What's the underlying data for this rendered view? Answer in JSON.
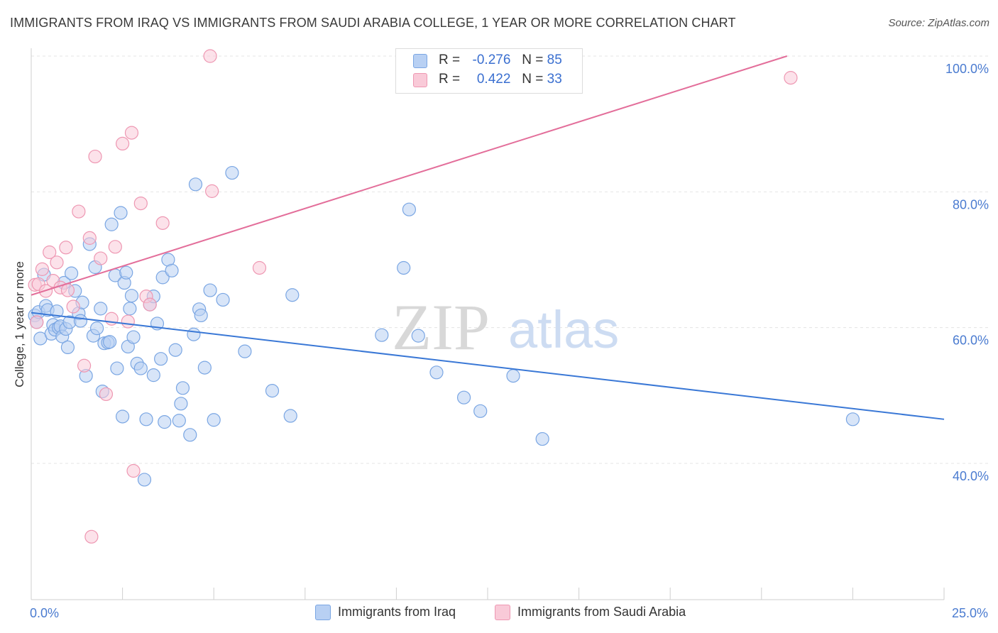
{
  "title": "IMMIGRANTS FROM IRAQ VS IMMIGRANTS FROM SAUDI ARABIA COLLEGE, 1 YEAR OR MORE CORRELATION CHART",
  "source": "Source: ZipAtlas.com",
  "watermark": {
    "zip": "ZIP",
    "atlas": "atlas"
  },
  "legend": {
    "r_label": "R =",
    "n_label": "N =",
    "rows": [
      {
        "r": "-0.276",
        "n": "85",
        "fill": "#b8d0f3",
        "stroke": "#7aa6e3"
      },
      {
        "r": "0.422",
        "n": "33",
        "fill": "#f9cad8",
        "stroke": "#ee97b2"
      }
    ]
  },
  "bottom_legend": [
    {
      "label": "Immigrants from Iraq",
      "fill": "#b8d0f3",
      "stroke": "#7aa6e3"
    },
    {
      "label": "Immigrants from Saudi Arabia",
      "fill": "#f9cad8",
      "stroke": "#ee97b2"
    }
  ],
  "chart_data": {
    "type": "scatter",
    "title": "IMMIGRANTS FROM IRAQ VS IMMIGRANTS FROM SAUDI ARABIA COLLEGE, 1 YEAR OR MORE CORRELATION CHART",
    "xlabel": "",
    "ylabel": "College, 1 year or more",
    "xlim": [
      0,
      25
    ],
    "ylim": [
      20,
      102
    ],
    "x_tick_labels": [
      "0.0%",
      "25.0%"
    ],
    "y_ticks": [
      40,
      60,
      80,
      100
    ],
    "y_tick_labels": [
      "40.0%",
      "60.0%",
      "80.0%",
      "100.0%"
    ],
    "grid": true,
    "legend_position": "top-center",
    "colors": {
      "iraq_line": "#3a78d6",
      "saudi_line": "#e36e9a"
    },
    "series": [
      {
        "name": "Immigrants from Iraq",
        "trendline": {
          "x": [
            0,
            25
          ],
          "y": [
            62.2,
            46.5
          ]
        },
        "points": [
          [
            0.1,
            61.8
          ],
          [
            0.15,
            60.8
          ],
          [
            0.2,
            62.3
          ],
          [
            0.25,
            58.4
          ],
          [
            0.35,
            67.8
          ],
          [
            0.4,
            63.2
          ],
          [
            0.45,
            62.6
          ],
          [
            0.55,
            59.1
          ],
          [
            0.6,
            60.4
          ],
          [
            0.65,
            59.7
          ],
          [
            0.7,
            62.4
          ],
          [
            0.75,
            60.0
          ],
          [
            0.8,
            60.2
          ],
          [
            0.85,
            58.7
          ],
          [
            0.9,
            66.6
          ],
          [
            0.95,
            59.8
          ],
          [
            1.0,
            57.1
          ],
          [
            1.05,
            60.8
          ],
          [
            1.1,
            68.0
          ],
          [
            1.2,
            65.4
          ],
          [
            1.3,
            62.1
          ],
          [
            1.35,
            61.0
          ],
          [
            1.4,
            63.7
          ],
          [
            1.5,
            52.9
          ],
          [
            1.6,
            72.3
          ],
          [
            1.7,
            58.8
          ],
          [
            1.75,
            68.9
          ],
          [
            1.8,
            59.9
          ],
          [
            1.9,
            62.8
          ],
          [
            1.95,
            50.6
          ],
          [
            2.0,
            57.7
          ],
          [
            2.1,
            57.8
          ],
          [
            2.2,
            75.2
          ],
          [
            2.3,
            67.7
          ],
          [
            2.35,
            54.0
          ],
          [
            2.45,
            76.9
          ],
          [
            2.5,
            46.9
          ],
          [
            2.55,
            66.6
          ],
          [
            2.6,
            68.1
          ],
          [
            2.65,
            57.2
          ],
          [
            2.7,
            62.8
          ],
          [
            2.75,
            64.7
          ],
          [
            2.8,
            58.6
          ],
          [
            2.9,
            54.7
          ],
          [
            3.0,
            54.0
          ],
          [
            3.1,
            37.6
          ],
          [
            3.15,
            46.5
          ],
          [
            3.25,
            63.4
          ],
          [
            3.35,
            64.6
          ],
          [
            3.35,
            53.0
          ],
          [
            3.45,
            60.6
          ],
          [
            3.55,
            55.4
          ],
          [
            3.6,
            67.4
          ],
          [
            3.65,
            46.1
          ],
          [
            3.75,
            70.0
          ],
          [
            3.85,
            68.4
          ],
          [
            3.95,
            56.7
          ],
          [
            4.05,
            46.3
          ],
          [
            4.1,
            48.8
          ],
          [
            4.15,
            51.1
          ],
          [
            4.35,
            44.2
          ],
          [
            4.45,
            59.0
          ],
          [
            4.5,
            81.1
          ],
          [
            4.6,
            62.7
          ],
          [
            4.65,
            61.8
          ],
          [
            4.75,
            54.1
          ],
          [
            4.9,
            65.5
          ],
          [
            5.0,
            46.4
          ],
          [
            5.25,
            64.1
          ],
          [
            5.5,
            82.8
          ],
          [
            5.85,
            56.5
          ],
          [
            6.6,
            50.7
          ],
          [
            7.1,
            47.0
          ],
          [
            7.15,
            64.8
          ],
          [
            9.6,
            58.9
          ],
          [
            10.2,
            68.8
          ],
          [
            10.35,
            77.4
          ],
          [
            10.6,
            58.8
          ],
          [
            11.1,
            53.4
          ],
          [
            11.85,
            49.7
          ],
          [
            12.3,
            47.7
          ],
          [
            13.2,
            52.9
          ],
          [
            14.0,
            43.6
          ],
          [
            22.5,
            46.5
          ],
          [
            2.15,
            57.9
          ]
        ]
      },
      {
        "name": "Immigrants from Saudi Arabia",
        "trendline": {
          "x": [
            0,
            20.7
          ],
          "y": [
            64.8,
            100.0
          ]
        },
        "points": [
          [
            0.1,
            66.3
          ],
          [
            0.15,
            60.8
          ],
          [
            0.2,
            66.4
          ],
          [
            0.3,
            68.6
          ],
          [
            0.4,
            65.4
          ],
          [
            0.5,
            71.1
          ],
          [
            0.6,
            66.9
          ],
          [
            0.7,
            69.6
          ],
          [
            0.8,
            65.9
          ],
          [
            0.95,
            71.8
          ],
          [
            1.0,
            65.5
          ],
          [
            1.15,
            63.1
          ],
          [
            1.3,
            77.1
          ],
          [
            1.45,
            54.4
          ],
          [
            1.6,
            73.2
          ],
          [
            1.75,
            85.2
          ],
          [
            1.9,
            70.2
          ],
          [
            2.05,
            50.2
          ],
          [
            2.2,
            61.3
          ],
          [
            2.3,
            71.9
          ],
          [
            2.5,
            87.1
          ],
          [
            2.65,
            60.9
          ],
          [
            2.75,
            88.7
          ],
          [
            2.8,
            38.9
          ],
          [
            3.0,
            78.3
          ],
          [
            3.15,
            64.6
          ],
          [
            3.25,
            63.4
          ],
          [
            3.6,
            75.4
          ],
          [
            4.9,
            100.0
          ],
          [
            4.95,
            80.1
          ],
          [
            6.25,
            68.8
          ],
          [
            20.8,
            96.8
          ],
          [
            1.65,
            29.2
          ]
        ]
      }
    ]
  }
}
